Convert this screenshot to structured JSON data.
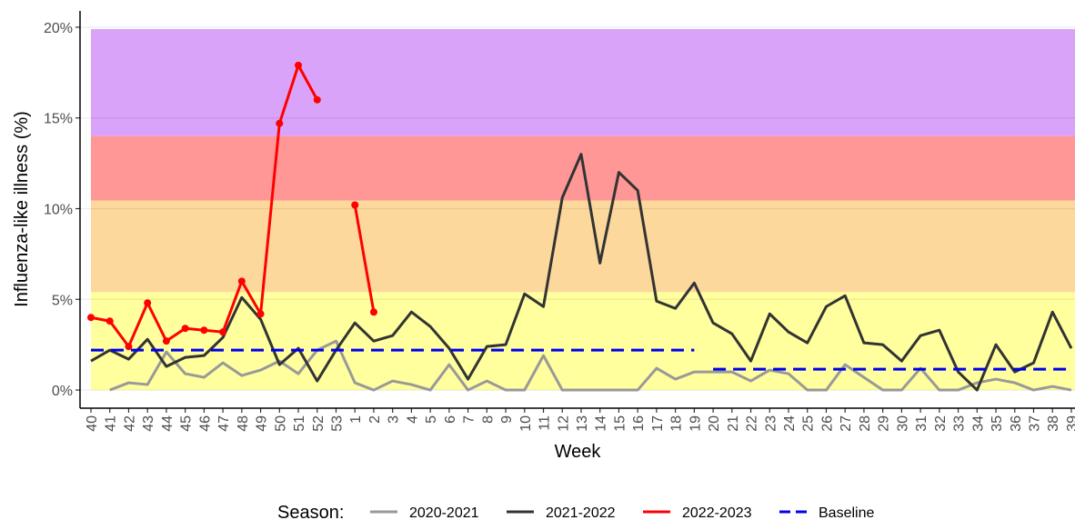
{
  "chart_data": {
    "type": "line",
    "y_label": "Influenza-like illness (%)",
    "x_label": "Week",
    "legend_title": "Season:",
    "legend_position": "bottom",
    "categories": [
      "40",
      "41",
      "42",
      "43",
      "44",
      "45",
      "46",
      "47",
      "48",
      "49",
      "50",
      "51",
      "52",
      "53",
      "1",
      "2",
      "3",
      "4",
      "5",
      "6",
      "7",
      "8",
      "9",
      "10",
      "11",
      "12",
      "13",
      "14",
      "15",
      "16",
      "17",
      "18",
      "19",
      "20",
      "21",
      "22",
      "23",
      "24",
      "25",
      "26",
      "27",
      "28",
      "29",
      "30",
      "31",
      "32",
      "33",
      "34",
      "35",
      "36",
      "37",
      "38",
      "39"
    ],
    "ylim": [
      -1,
      20.9
    ],
    "yticks": [
      {
        "value": 0,
        "label": "0%"
      },
      {
        "value": 5,
        "label": "5%"
      },
      {
        "value": 10,
        "label": "10%"
      },
      {
        "value": 15,
        "label": "15%"
      },
      {
        "value": 20,
        "label": "20%"
      }
    ],
    "grid": true,
    "bands": [
      {
        "from": 0,
        "to": 5.4,
        "color": "#ffff9e"
      },
      {
        "from": 5.4,
        "to": 10.45,
        "color": "#fcd89c"
      },
      {
        "from": 10.45,
        "to": 14,
        "color": "#ff9797"
      },
      {
        "from": 14,
        "to": 19.9,
        "color": "#d9a3f9"
      }
    ],
    "series": [
      {
        "name": "2020-2021",
        "color": "#999999",
        "values": [
          null,
          0,
          0.4,
          0.3,
          2.1,
          0.9,
          0.7,
          1.5,
          0.8,
          1.1,
          1.6,
          0.9,
          2.2,
          2.7,
          0.4,
          0,
          0.5,
          0.3,
          0,
          1.4,
          0,
          0.5,
          0,
          0,
          1.9,
          0,
          0,
          0,
          0,
          0,
          1.2,
          0.6,
          1.0,
          1.0,
          1.0,
          0.5,
          1.1,
          0.9,
          0,
          0,
          1.4,
          0.7,
          0,
          0,
          1.2,
          0,
          0,
          0.4,
          0.6,
          0.4,
          0,
          0.2,
          0
        ]
      },
      {
        "name": "2021-2022",
        "color": "#333333",
        "values": [
          1.6,
          2.2,
          1.7,
          2.8,
          1.3,
          1.8,
          1.9,
          2.9,
          5.1,
          3.9,
          1.4,
          2.3,
          0.5,
          2.2,
          3.7,
          2.7,
          3.0,
          4.3,
          3.5,
          2.3,
          0.6,
          2.4,
          2.5,
          5.3,
          4.6,
          10.6,
          13.0,
          7.0,
          12.0,
          11.0,
          4.9,
          4.5,
          5.9,
          3.7,
          3.1,
          1.6,
          4.2,
          3.2,
          2.6,
          4.6,
          5.2,
          2.6,
          2.5,
          1.6,
          3.0,
          3.3,
          1.0,
          0,
          2.5,
          1.0,
          1.5,
          4.3,
          2.3
        ]
      },
      {
        "name": "2022-2023",
        "color": "#ff0000",
        "points": true,
        "values": [
          4.0,
          3.8,
          2.4,
          4.8,
          2.7,
          3.4,
          3.3,
          3.2,
          6.0,
          4.2,
          14.7,
          17.9,
          16.0,
          null,
          10.2,
          4.3,
          null,
          null,
          null,
          null,
          null,
          null,
          null,
          null,
          null,
          null,
          null,
          null,
          null,
          null,
          null,
          null,
          null,
          null,
          null,
          null,
          null,
          null,
          null,
          null,
          null,
          null,
          null,
          null,
          null,
          null,
          null,
          null,
          null,
          null,
          null,
          null,
          null
        ]
      },
      {
        "name": "Baseline",
        "color": "#0000ee",
        "dashed": true,
        "values": [
          2.2,
          2.2,
          2.2,
          2.2,
          2.2,
          2.2,
          2.2,
          2.2,
          2.2,
          2.2,
          2.2,
          2.2,
          2.2,
          2.2,
          2.2,
          2.2,
          2.2,
          2.2,
          2.2,
          2.2,
          2.2,
          2.2,
          2.2,
          2.2,
          2.2,
          2.2,
          2.2,
          2.2,
          2.2,
          2.2,
          2.2,
          2.2,
          2.2,
          1.15,
          1.15,
          1.15,
          1.15,
          1.15,
          1.15,
          1.15,
          1.15,
          1.15,
          1.15,
          1.15,
          1.15,
          1.15,
          1.15,
          1.15,
          1.15,
          1.15,
          1.15,
          1.15,
          1.15
        ]
      }
    ]
  }
}
